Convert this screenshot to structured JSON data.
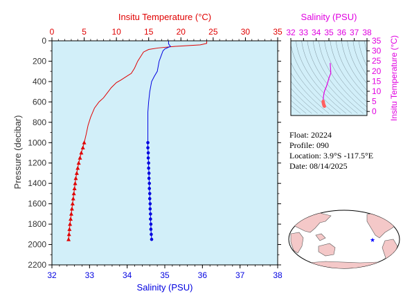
{
  "chart_data": [
    {
      "type": "line",
      "name_hint": "profile",
      "top_axis_title": "Insitu Temperature (°C)",
      "bottom_axis_title": "Salinity (PSU)",
      "left_axis_title": "Pressure (decibar)",
      "temperature_axis": {
        "range": [
          0,
          35
        ],
        "ticks": [
          0,
          5,
          10,
          15,
          20,
          25,
          30,
          35
        ],
        "color": "#e00000"
      },
      "salinity_axis": {
        "range": [
          32,
          38
        ],
        "ticks": [
          32,
          33,
          34,
          35,
          36,
          37,
          38
        ],
        "color": "#0000e0"
      },
      "pressure_axis": {
        "range": [
          0,
          2200
        ],
        "ticks": [
          0,
          200,
          400,
          600,
          800,
          1000,
          1200,
          1400,
          1600,
          1800,
          2000,
          2200
        ],
        "inverted": true
      },
      "series": [
        {
          "variable": "temperature",
          "color": "#e00000",
          "line_points": [
            [
              24.0,
              0
            ],
            [
              24.0,
              25
            ],
            [
              23.0,
              40
            ],
            [
              19.0,
              55
            ],
            [
              16.5,
              70
            ],
            [
              15.0,
              85
            ],
            [
              14.2,
              110
            ],
            [
              13.8,
              150
            ],
            [
              13.3,
              200
            ],
            [
              12.8,
              270
            ],
            [
              12.3,
              320
            ],
            [
              11.8,
              340
            ],
            [
              11.3,
              360
            ],
            [
              10.7,
              385
            ],
            [
              10.0,
              410
            ],
            [
              9.2,
              460
            ],
            [
              8.6,
              510
            ],
            [
              8.0,
              560
            ],
            [
              7.3,
              600
            ],
            [
              6.6,
              660
            ],
            [
              6.0,
              750
            ],
            [
              5.6,
              830
            ],
            [
              5.3,
              920
            ],
            [
              5.0,
              1000
            ]
          ],
          "marker_points": [
            [
              5.0,
              1000
            ],
            [
              4.8,
              1050
            ],
            [
              4.55,
              1100
            ],
            [
              4.35,
              1150
            ],
            [
              4.15,
              1200
            ],
            [
              4.0,
              1250
            ],
            [
              3.85,
              1300
            ],
            [
              3.7,
              1350
            ],
            [
              3.6,
              1400
            ],
            [
              3.5,
              1450
            ],
            [
              3.4,
              1500
            ],
            [
              3.3,
              1550
            ],
            [
              3.2,
              1600
            ],
            [
              3.1,
              1650
            ],
            [
              3.0,
              1700
            ],
            [
              2.9,
              1750
            ],
            [
              2.8,
              1800
            ],
            [
              2.72,
              1850
            ],
            [
              2.65,
              1900
            ],
            [
              2.58,
              1950
            ]
          ],
          "marker": "triangle"
        },
        {
          "variable": "salinity",
          "color": "#0000e0",
          "line_points": [
            [
              35.1,
              0
            ],
            [
              35.1,
              30
            ],
            [
              35.15,
              55
            ],
            [
              35.0,
              80
            ],
            [
              34.95,
              100
            ],
            [
              34.9,
              150
            ],
            [
              34.85,
              200
            ],
            [
              34.8,
              300
            ],
            [
              34.72,
              350
            ],
            [
              34.65,
              400
            ],
            [
              34.6,
              500
            ],
            [
              34.57,
              600
            ],
            [
              34.55,
              700
            ],
            [
              34.55,
              800
            ],
            [
              34.55,
              900
            ],
            [
              34.55,
              1000
            ]
          ],
          "marker_points": [
            [
              34.55,
              1000
            ],
            [
              34.55,
              1050
            ],
            [
              34.56,
              1100
            ],
            [
              34.56,
              1150
            ],
            [
              34.57,
              1200
            ],
            [
              34.57,
              1250
            ],
            [
              34.58,
              1300
            ],
            [
              34.58,
              1350
            ],
            [
              34.59,
              1400
            ],
            [
              34.59,
              1450
            ],
            [
              34.6,
              1500
            ],
            [
              34.6,
              1550
            ],
            [
              34.61,
              1600
            ],
            [
              34.61,
              1650
            ],
            [
              34.62,
              1700
            ],
            [
              34.62,
              1750
            ],
            [
              34.63,
              1800
            ],
            [
              34.63,
              1850
            ],
            [
              34.64,
              1900
            ],
            [
              34.65,
              1950
            ]
          ],
          "marker": "circle"
        }
      ]
    },
    {
      "type": "scatter",
      "name_hint": "ts-diagram",
      "x_axis_title": "Salinity (PSU)",
      "y_axis_title": "Insitu Temperature (°C)",
      "x_range": [
        32,
        38
      ],
      "x_ticks": [
        32,
        33,
        34,
        35,
        36,
        37,
        38
      ],
      "y_range": [
        -2,
        35
      ],
      "y_ticks": [
        0,
        5,
        10,
        15,
        20,
        25,
        30,
        35
      ],
      "axis_color": "#e000e0",
      "curve_color": "#e000e0",
      "dot_color": "#ff6060",
      "ts_curve": [
        [
          35.1,
          24.0
        ],
        [
          35.15,
          19.0
        ],
        [
          35.0,
          16.5
        ],
        [
          34.9,
          14.2
        ],
        [
          34.85,
          13.3
        ],
        [
          34.8,
          12.3
        ],
        [
          34.65,
          10.0
        ],
        [
          34.6,
          8.6
        ],
        [
          34.57,
          7.3
        ],
        [
          34.55,
          6.0
        ],
        [
          34.55,
          5.0
        ]
      ],
      "ts_dots": [
        [
          34.55,
          5.0
        ],
        [
          34.55,
          4.6
        ],
        [
          34.56,
          4.3
        ],
        [
          34.57,
          4.0
        ],
        [
          34.58,
          3.7
        ],
        [
          34.59,
          3.5
        ],
        [
          34.6,
          3.3
        ],
        [
          34.61,
          3.1
        ],
        [
          34.62,
          2.9
        ],
        [
          34.63,
          2.7
        ],
        [
          34.65,
          2.6
        ]
      ]
    }
  ],
  "info": {
    "float": "Float:  20224",
    "profile": "Profile:  090",
    "location": "Location:  3.9°S  -117.5°E",
    "date": "Date:  08/14/2025"
  },
  "map": {
    "marker_lon": -117.5,
    "marker_lat": -3.9,
    "marker_color": "#0000ff",
    "land_color": "#f4c8c8",
    "ocean_color": "#ffffff"
  }
}
